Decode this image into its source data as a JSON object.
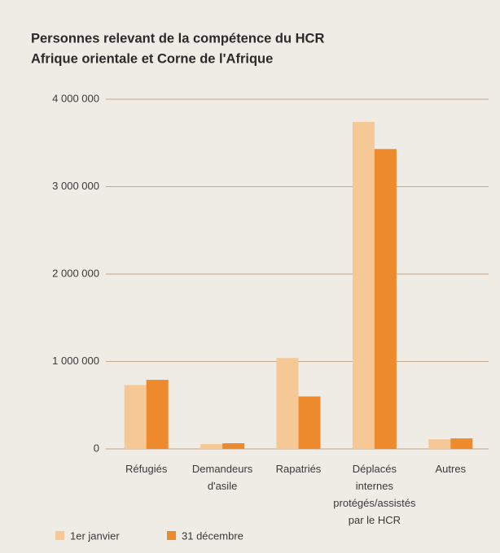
{
  "chart_data": {
    "type": "bar",
    "title": "Personnes relevant de la compétence du HCR",
    "subtitle": "Afrique orientale et Corne de l'Afrique",
    "categories": [
      "Réfugiés",
      "Demandeurs\nd'asile",
      "Rapatriés",
      "Déplacés\ninternes\nprotégés/assistés\npar le HCR",
      "Autres"
    ],
    "series": [
      {
        "name": "1er janvier",
        "color": "#f5c896",
        "values": [
          730000,
          55000,
          1040000,
          3740000,
          110000
        ]
      },
      {
        "name": "31 décembre",
        "color": "#ee8a2e",
        "values": [
          790000,
          65000,
          600000,
          3430000,
          120000
        ]
      }
    ],
    "ylim": [
      0,
      4000000
    ],
    "yticks": [
      0,
      {
        "value": 1000000,
        "label": "1 000 000"
      },
      {
        "value": 2000000,
        "label": "2 000 000"
      },
      {
        "value": 3000000,
        "label": "3 000 000"
      },
      {
        "value": 4000000,
        "label": "4 000 000"
      }
    ],
    "grid": true
  }
}
